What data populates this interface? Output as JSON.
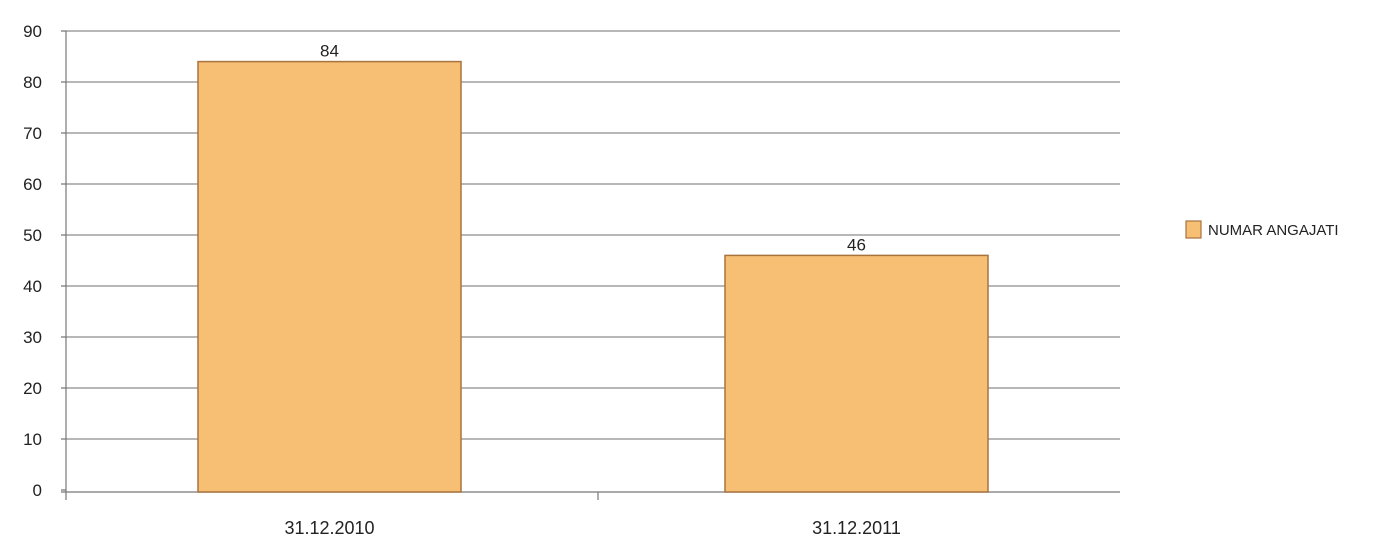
{
  "chart_data": {
    "type": "bar",
    "categories": [
      "31.12.2010",
      "31.12.2011"
    ],
    "series": [
      {
        "name": "NUMAR ANGAJATI",
        "values": [
          84,
          46
        ],
        "color": "#f7bf74",
        "border_color": "#a8733f"
      }
    ],
    "data_labels": [
      "84",
      "46"
    ],
    "ylim": [
      0,
      90
    ],
    "yticks": [
      0,
      10,
      20,
      30,
      40,
      50,
      60,
      70,
      80,
      90
    ],
    "grid": true,
    "legend": "right"
  }
}
